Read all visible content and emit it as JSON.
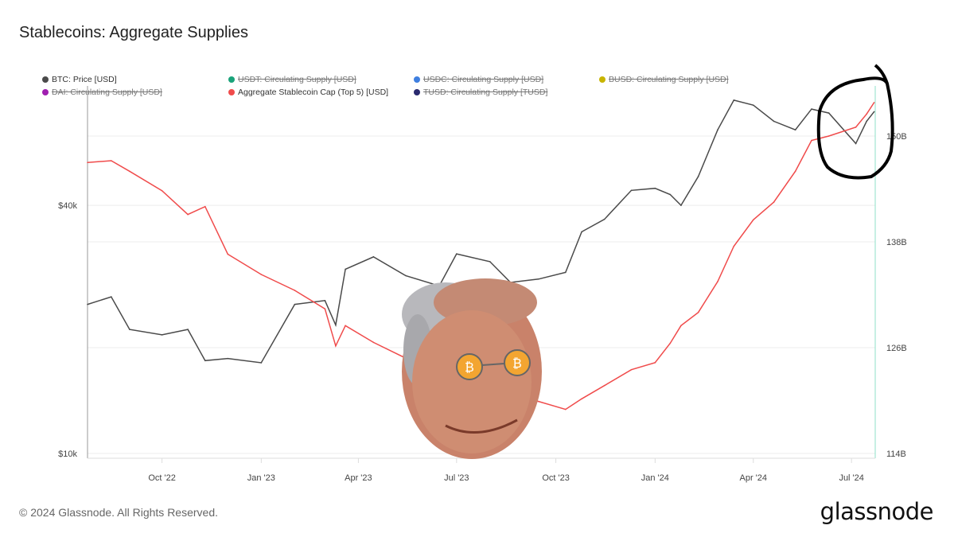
{
  "title": "Stablecoins: Aggregate Supplies",
  "legend": [
    {
      "label": "BTC: Price [USD]",
      "color": "#4a4a4a",
      "enabled": true
    },
    {
      "label": "USDT: Circulating Supply [USD]",
      "color": "#1aa37a",
      "enabled": false
    },
    {
      "label": "USDC: Circulating Supply [USD]",
      "color": "#3f7fe0",
      "enabled": false
    },
    {
      "label": "BUSD: Circulating Supply [USD]",
      "color": "#c8b400",
      "enabled": false
    },
    {
      "label": "DAI: Circulating Supply [USD]",
      "color": "#a020b0",
      "enabled": false
    },
    {
      "label": "Aggregate Stablecoin Cap (Top 5) [USD]",
      "color": "#f04b4b",
      "enabled": true
    },
    {
      "label": "TUSD: Circulating Supply [TUSD]",
      "color": "#2a2a6e",
      "enabled": false
    }
  ],
  "chart_data": {
    "type": "line",
    "title": "Stablecoins: Aggregate Supplies",
    "xlim": [
      "2022-07-24",
      "2024-07-23"
    ],
    "x_ticks": [
      {
        "date": "2022-10-01",
        "label": "Oct '22"
      },
      {
        "date": "2023-01-01",
        "label": "Jan '23"
      },
      {
        "date": "2023-04-01",
        "label": "Apr '23"
      },
      {
        "date": "2023-07-01",
        "label": "Jul '23"
      },
      {
        "date": "2023-10-01",
        "label": "Oct '23"
      },
      {
        "date": "2024-01-01",
        "label": "Jan '24"
      },
      {
        "date": "2024-04-01",
        "label": "Apr '24"
      },
      {
        "date": "2024-07-01",
        "label": "Jul '24"
      }
    ],
    "y_left": {
      "scale": "log",
      "range": [
        10000,
        80000
      ],
      "ticks": [
        {
          "value": 10000,
          "label": "$10k"
        },
        {
          "value": 40000,
          "label": "$40k"
        }
      ]
    },
    "y_right": {
      "scale": "linear",
      "range": [
        114,
        153
      ],
      "unit": "B",
      "ticks": [
        {
          "value": 114,
          "label": "114B"
        },
        {
          "value": 126,
          "label": "126B"
        },
        {
          "value": 138,
          "label": "138B"
        },
        {
          "value": 150,
          "label": "150B"
        }
      ]
    },
    "grid": true,
    "legend_position": "top",
    "x": [
      "2022-07-24",
      "2022-08-15",
      "2022-09-01",
      "2022-10-01",
      "2022-10-25",
      "2022-11-10",
      "2022-12-01",
      "2023-01-01",
      "2023-02-01",
      "2023-03-01",
      "2023-03-11",
      "2023-03-20",
      "2023-04-15",
      "2023-05-15",
      "2023-06-15",
      "2023-07-01",
      "2023-08-01",
      "2023-08-20",
      "2023-09-15",
      "2023-10-10",
      "2023-10-25",
      "2023-11-15",
      "2023-12-10",
      "2024-01-01",
      "2024-01-15",
      "2024-01-25",
      "2024-02-10",
      "2024-02-28",
      "2024-03-14",
      "2024-04-01",
      "2024-04-20",
      "2024-05-10",
      "2024-05-25",
      "2024-06-10",
      "2024-07-05",
      "2024-07-15",
      "2024-07-22"
    ],
    "series": [
      {
        "name": "BTC: Price [USD]",
        "axis": "left",
        "color": "#4a4a4a",
        "values": [
          23000,
          24000,
          20000,
          19400,
          20000,
          16800,
          17000,
          16600,
          23000,
          23500,
          20500,
          28000,
          30000,
          27000,
          25500,
          30500,
          29200,
          26000,
          26500,
          27500,
          34500,
          37000,
          43500,
          44000,
          42500,
          40000,
          47000,
          61000,
          72000,
          70000,
          64000,
          61000,
          68500,
          67000,
          56500,
          64000,
          67500
        ]
      },
      {
        "name": "Aggregate Stablecoin Cap (Top 5) [USD]",
        "axis": "right",
        "unit": "B",
        "color": "#f04b4b",
        "values": [
          147.0,
          147.2,
          146.0,
          143.8,
          141.1,
          142.0,
          136.6,
          134.3,
          132.5,
          130.4,
          126.2,
          128.5,
          126.6,
          124.8,
          124.5,
          122.1,
          120.8,
          120.5,
          119.9,
          119.0,
          120.2,
          121.7,
          123.5,
          124.3,
          126.5,
          128.5,
          130.0,
          133.5,
          137.5,
          140.5,
          142.5,
          146.0,
          149.5,
          150.0,
          151.0,
          152.5,
          153.8
        ]
      }
    ]
  },
  "footer": "© 2024 Glassnode. All Rights Reserved.",
  "logo": "glassnode"
}
